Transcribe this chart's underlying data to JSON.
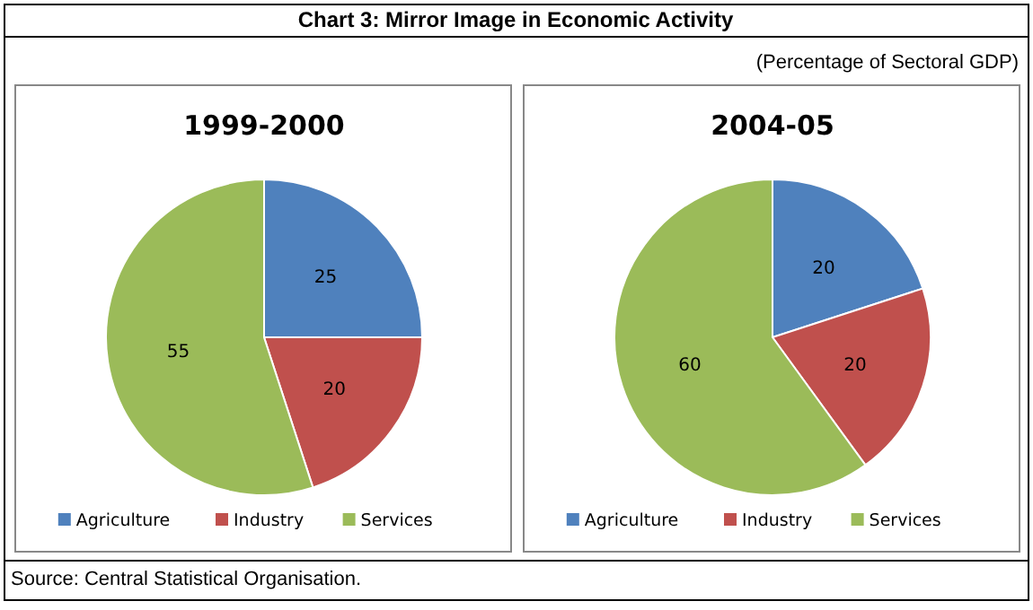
{
  "chart_data": [
    {
      "type": "other",
      "title": "Chart 3: Mirror Image in Economic Activity",
      "subtitle": "(Percentage of Sectoral GDP)",
      "annotations": [
        "Source: Central Statistical Organisation."
      ]
    },
    {
      "type": "pie",
      "title": "1999-2000",
      "categories": [
        "Agriculture",
        "Industry",
        "Services"
      ],
      "values": [
        25,
        20,
        55
      ],
      "colors": [
        "#4f81bd",
        "#c0504d",
        "#9bbb59"
      ],
      "data_labels": true,
      "legend": "bottom"
    },
    {
      "type": "pie",
      "title": "2004-05",
      "categories": [
        "Agriculture",
        "Industry",
        "Services"
      ],
      "values": [
        20,
        20,
        60
      ],
      "colors": [
        "#4f81bd",
        "#c0504d",
        "#9bbb59"
      ],
      "data_labels": true,
      "legend": "bottom"
    }
  ]
}
